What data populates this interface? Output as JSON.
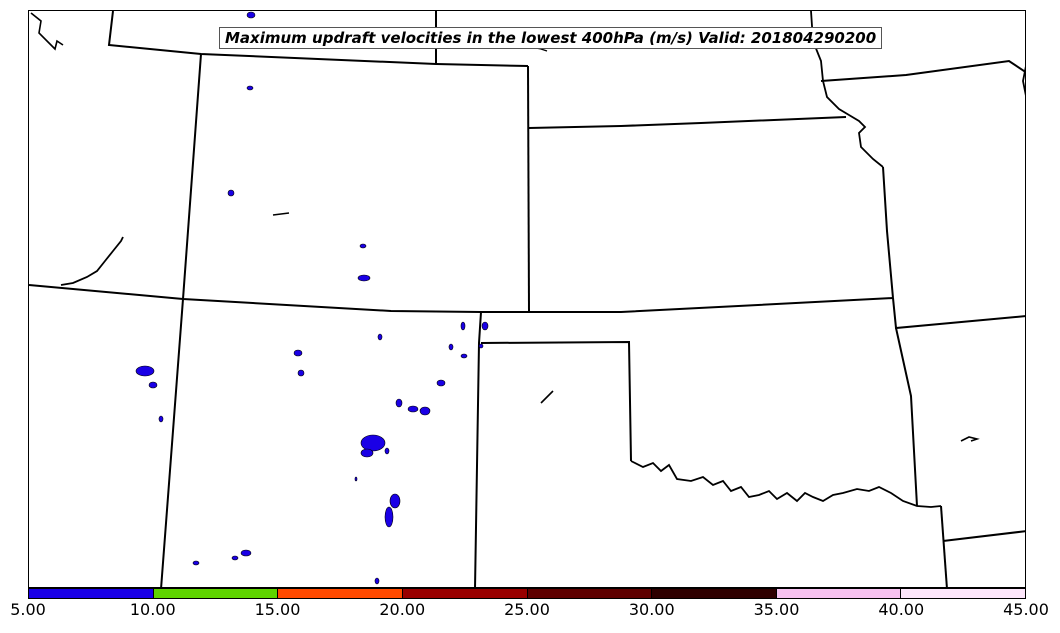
{
  "title": "Maximum updraft velocities in the lowest 400hPa (m/s) Valid: 201804290200",
  "colorbar": {
    "ticks": [
      "5.00",
      "10.00",
      "15.00",
      "20.00",
      "25.00",
      "30.00",
      "35.00",
      "40.00",
      "45.00"
    ],
    "colors": [
      "#1a00e6",
      "#5fd400",
      "#ff4a00",
      "#990000",
      "#5e0000",
      "#2e0000",
      "#f7c2f0",
      "#fde6fb"
    ]
  },
  "map": {
    "fill_color": "#1a00e6",
    "boundary_color": "#000000",
    "features": [
      "state-boundaries",
      "updraft-cells"
    ]
  }
}
